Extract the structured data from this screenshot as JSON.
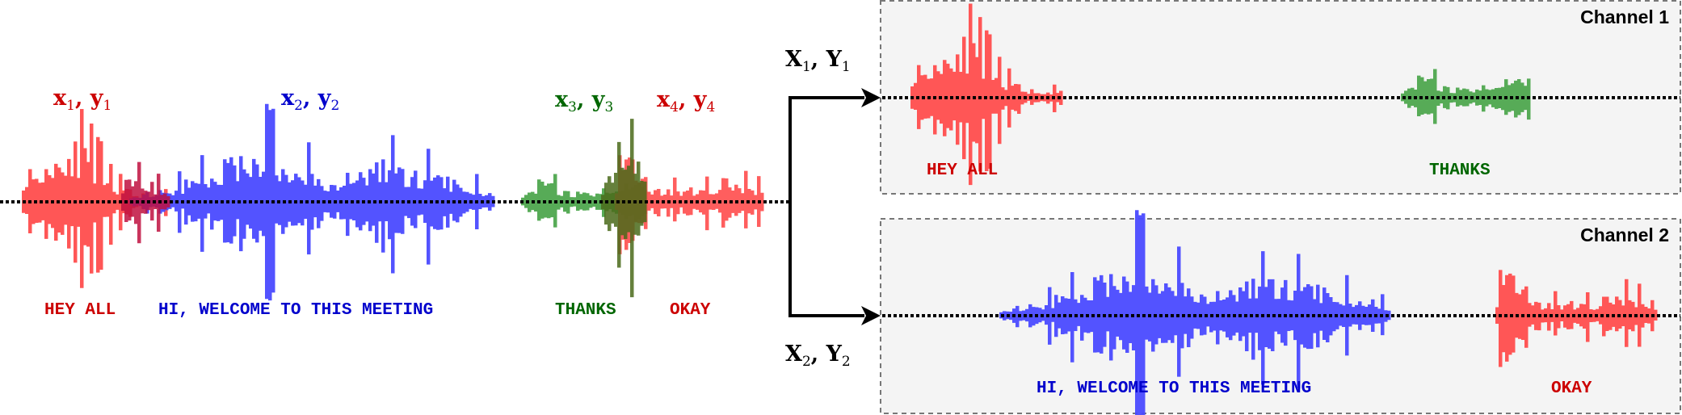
{
  "colors": {
    "red_wave": "#ff4d4d",
    "blue_wave": "#4a4aff",
    "green_wave": "#4ea64e",
    "red_text": "#cc0000",
    "blue_text": "#0000cc",
    "green_text": "#006600",
    "panel_bg": "#f4f4f4",
    "panel_border": "#777777"
  },
  "mixture": {
    "segments": [
      {
        "var": "x",
        "var2": "y",
        "index": "1",
        "transcript": "HEY ALL",
        "color": "red"
      },
      {
        "var": "x",
        "var2": "y",
        "index": "2",
        "transcript": "HI, WELCOME TO THIS MEETING",
        "color": "blue"
      },
      {
        "var": "x",
        "var2": "y",
        "index": "3",
        "transcript": "THANKS",
        "color": "green"
      },
      {
        "var": "x",
        "var2": "y",
        "index": "4",
        "transcript": "OKAY",
        "color": "red"
      }
    ]
  },
  "channels": [
    {
      "title": "Channel 1",
      "var": "X",
      "var2": "Y",
      "index": "1",
      "transcripts": [
        "HEY ALL",
        "THANKS"
      ]
    },
    {
      "title": "Channel 2",
      "var": "X",
      "var2": "Y",
      "index": "2",
      "transcripts": [
        "HI, WELCOME TO THIS MEETING",
        "OKAY"
      ]
    }
  ]
}
